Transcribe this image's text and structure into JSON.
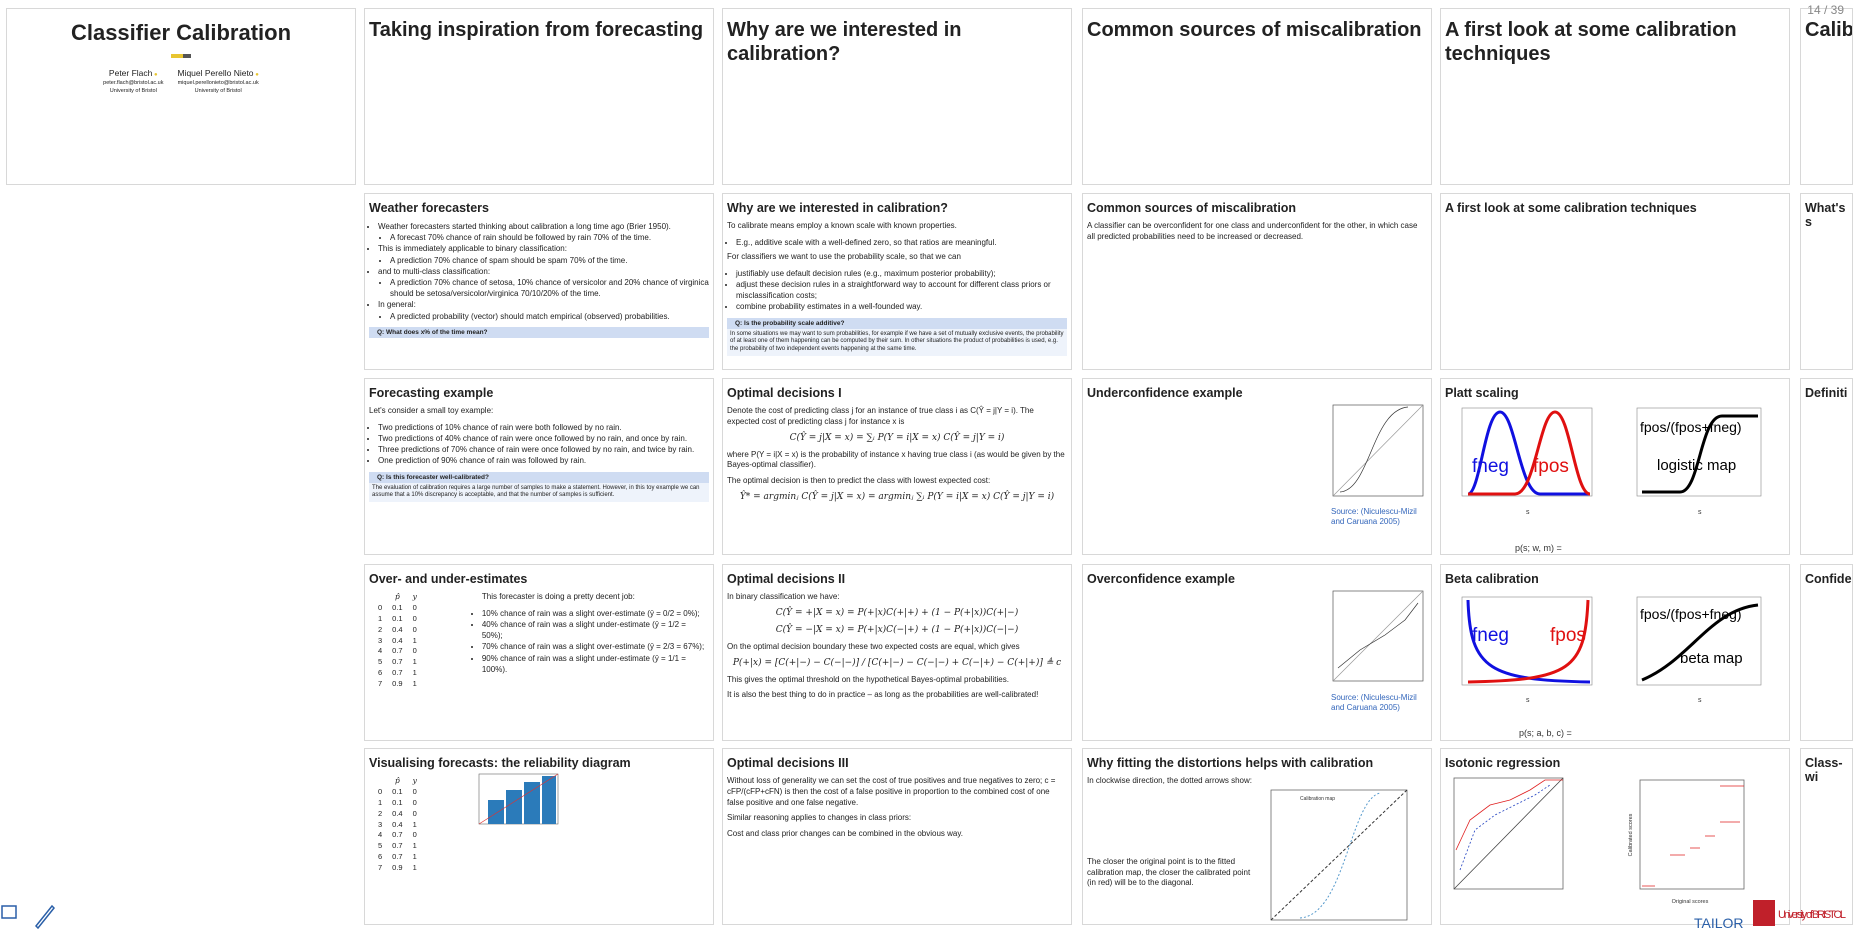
{
  "page_indicator": "14 / 39",
  "columns": [
    [
      {
        "title": "Classifier Calibration",
        "authors": [
          {
            "name": "Peter Flach",
            "email": "peter.flach@bristol.ac.uk",
            "affiliation": "University of Bristol"
          },
          {
            "name": "Miquel Perello Nieto",
            "email": "miquel.perellonieto@bristol.ac.uk",
            "affiliation": "University of Bristol"
          }
        ]
      }
    ],
    [
      {
        "title": "Taking inspiration from forecasting"
      },
      {
        "title": "Weather forecasters",
        "blocks": [
          {
            "bullets": [
              {
                "text": "Weather forecasters started thinking about calibration a long time ago (Brier 1950).",
                "sub": [
                  {
                    "text": "A forecast 70% chance of rain should be followed by rain 70% of the time."
                  }
                ]
              },
              {
                "text": "This is immediately applicable to binary classification:",
                "sub": [
                  {
                    "text": "A prediction 70% chance of spam should be spam 70% of the time."
                  }
                ]
              },
              {
                "text": "and to multi-class classification:",
                "sub": [
                  {
                    "text": "A prediction 70% chance of setosa, 10% chance of versicolor and 20% chance of virginica should be setosa/versicolor/virginica 70/10/20% of the time."
                  }
                ]
              },
              {
                "text": "In general:",
                "sub": [
                  {
                    "text": "A predicted probability (vector) should match empirical (observed) probabilities."
                  }
                ]
              }
            ]
          },
          {
            "box": {
              "title": "Q: What does x% of the time mean?",
              "text": ""
            }
          }
        ]
      },
      {
        "title": "Forecasting example",
        "blocks": [
          {
            "text": "Let's consider a small toy example:"
          },
          {
            "bullets": [
              {
                "text": "Two predictions of 10% chance of rain were both followed by no rain."
              },
              {
                "text": "Two predictions of 40% chance of rain were once followed by no rain, and once by rain."
              },
              {
                "text": "Three predictions of 70% chance of rain were once followed by no rain, and twice by rain."
              },
              {
                "text": "One prediction of 90% chance of rain was followed by rain."
              }
            ]
          },
          {
            "box": {
              "title": "Q: Is this forecaster well-calibrated?",
              "text": "The evaluation of calibration requires a large number of samples to make a statement. However, in this toy example we can assume that a 10% discrepancy is acceptable, and that the number of samples is sufficient."
            }
          }
        ]
      },
      {
        "title": "Over- and under-estimates",
        "blocks": [
          {
            "table": {
              "header": [
                "p̂",
                "y"
              ],
              "rows": [
                [
                  0,
                  0.1,
                  0
                ],
                [
                  1,
                  0.1,
                  0
                ],
                [
                  2,
                  0.4,
                  0
                ],
                [
                  3,
                  0.4,
                  1
                ],
                [
                  4,
                  0.7,
                  0
                ],
                [
                  5,
                  0.7,
                  1
                ],
                [
                  6,
                  0.7,
                  1
                ],
                [
                  7,
                  0.9,
                  1
                ]
              ]
            }
          },
          {
            "text": "This forecaster is doing a pretty decent job:"
          },
          {
            "bullets": [
              {
                "text": "10% chance of rain was a slight over-estimate (ȳ = 0/2 = 0%);"
              },
              {
                "text": "40% chance of rain was a slight under-estimate (ȳ = 1/2 = 50%);"
              },
              {
                "text": "70% chance of rain was a slight over-estimate (ȳ = 2/3 = 67%);"
              },
              {
                "text": "90% chance of rain was a slight under-estimate (ȳ = 1/1 = 100%)."
              }
            ]
          }
        ]
      },
      {
        "title": "Visualising forecasts: the reliability diagram",
        "blocks": [
          {
            "table": {
              "header": [
                "p̂",
                "y"
              ],
              "rows": [
                [
                  0,
                  0.1,
                  0
                ],
                [
                  1,
                  0.1,
                  0
                ],
                [
                  2,
                  0.4,
                  0
                ],
                [
                  3,
                  0.4,
                  1
                ],
                [
                  4,
                  0.7,
                  0
                ],
                [
                  5,
                  0.7,
                  1
                ],
                [
                  6,
                  0.7,
                  1
                ],
                [
                  7,
                  0.9,
                  1
                ]
              ]
            }
          }
        ]
      }
    ],
    [
      {
        "title": "Why are we interested in calibration?"
      },
      {
        "title": "Why are we interested in calibration?",
        "blocks": [
          {
            "text": "To calibrate means employ a known scale with known properties."
          },
          {
            "bullets": [
              {
                "text": "E.g., additive scale with a well-defined zero, so that ratios are meaningful."
              }
            ]
          },
          {
            "text": "For classifiers we want to use the probability scale, so that we can"
          },
          {
            "bullets": [
              {
                "text": "justifiably use default decision rules (e.g., maximum posterior probability);"
              },
              {
                "text": "adjust these decision rules in a straightforward way to account for different class priors or misclassification costs;"
              },
              {
                "text": "combine probability estimates in a well-founded way."
              }
            ]
          },
          {
            "box": {
              "title": "Q: Is the probability scale additive?",
              "text": "In some situations we may want to sum probabilities, for example if we have a set of mutually exclusive events, the probability of at least one of them happening can be computed by their sum. In other situations the product of probabilities is used, e.g. the probability of two independent events happening at the same time."
            }
          }
        ]
      },
      {
        "title": "Optimal decisions I",
        "blocks": [
          {
            "text": "Denote the cost of predicting class j for an instance of true class i as C(Ŷ = j|Y = i). The expected cost of predicting class j for instance x is"
          },
          {
            "formula": "C(Ŷ = j|X = x) = ∑ᵢ P(Y = i|X = x) C(Ŷ = j|Y = i)"
          },
          {
            "text": "where P(Y = i|X = x) is the probability of instance x having true class i (as would be given by the Bayes-optimal classifier)."
          },
          {
            "text": "The optimal decision is then to predict the class with lowest expected cost:"
          },
          {
            "formula": "Ŷ* = argminⱼ C(Ŷ = j|X = x) = argminⱼ ∑ᵢ P(Y = i|X = x) C(Ŷ = j|Y = i)"
          }
        ]
      },
      {
        "title": "Optimal decisions II",
        "blocks": [
          {
            "text": "In binary classification we have:"
          },
          {
            "formula": "C(Ŷ = +|X = x) = P(+|x)C(+|+) + (1 − P(+|x))C(+|−)"
          },
          {
            "formula": "C(Ŷ = −|X = x) = P(+|x)C(−|+) + (1 − P(+|x))C(−|−)"
          },
          {
            "text": "On the optimal decision boundary these two expected costs are equal, which gives"
          },
          {
            "formula": "P(+|x) = [C(+|−) − C(−|−)] / [C(+|−) − C(−|−) + C(−|+) − C(+|+)] ≜ c"
          },
          {
            "text": "This gives the optimal threshold on the hypothetical Bayes-optimal probabilities."
          },
          {
            "text": "It is also the best thing to do in practice – as long as the probabilities are well-calibrated!"
          }
        ]
      },
      {
        "title": "Optimal decisions III",
        "blocks": [
          {
            "text": "Without loss of generality we can set the cost of true positives and true negatives to zero; c = cFP/(cFP+cFN) is then the cost of a false positive in proportion to the combined cost of one false positive and one false negative."
          },
          {
            "text": "Similar reasoning applies to changes in class priors:"
          },
          {
            "text": "Cost and class prior changes can be combined in the obvious way."
          }
        ]
      }
    ],
    [
      {
        "title": "Common sources of miscalibration"
      },
      {
        "title": "Common sources of miscalibration",
        "blocks": [
          {
            "text": "A classifier can be overconfident for one class and underconfident for the other, in which case all predicted probabilities need to be increased or decreased."
          }
        ]
      },
      {
        "title": "Underconfidence example",
        "blocks": [
          {
            "source": "Source: (Niculescu-Mizil and Caruana 2005)"
          }
        ]
      },
      {
        "title": "Overconfidence example",
        "blocks": [
          {
            "source": "Source: (Niculescu-Mizil and Caruana 2005)"
          }
        ]
      },
      {
        "title": "Why fitting the distortions helps with calibration",
        "blocks": [
          {
            "text": "In clockwise direction, the dotted arrows show:"
          },
          {
            "text": "The closer the original point is to the fitted calibration map, the closer the calibrated point (in red) will be to the diagonal."
          }
        ],
        "figure_labels": [
          "Calibration map"
        ]
      }
    ],
    [
      {
        "title": "A first look at some calibration techniques"
      },
      {
        "title": "A first look at some calibration techniques"
      },
      {
        "title": "Platt scaling",
        "figure_labels": [
          "fneg",
          "fpos",
          "s",
          "fpos/(fpos+fneg)",
          "logistic map",
          "s",
          "p(s; w, m) ="
        ]
      },
      {
        "title": "Beta calibration",
        "figure_labels": [
          "fneg",
          "fpos",
          "s",
          "fpos/(fpos+fneg)",
          "beta map",
          "s",
          "p(s; a, b, c) ="
        ]
      },
      {
        "title": "Isotonic regression",
        "figure_labels": [
          "Original scores",
          "Calibrated scores"
        ]
      }
    ],
    [
      {
        "title": "Calib"
      },
      {
        "title": "What's s"
      },
      {
        "title": "Definiti"
      },
      {
        "title": "Confider"
      },
      {
        "title": "Class-wi"
      }
    ]
  ],
  "footer": {
    "project": "TAILOR",
    "university": "University of BRISTOL"
  }
}
